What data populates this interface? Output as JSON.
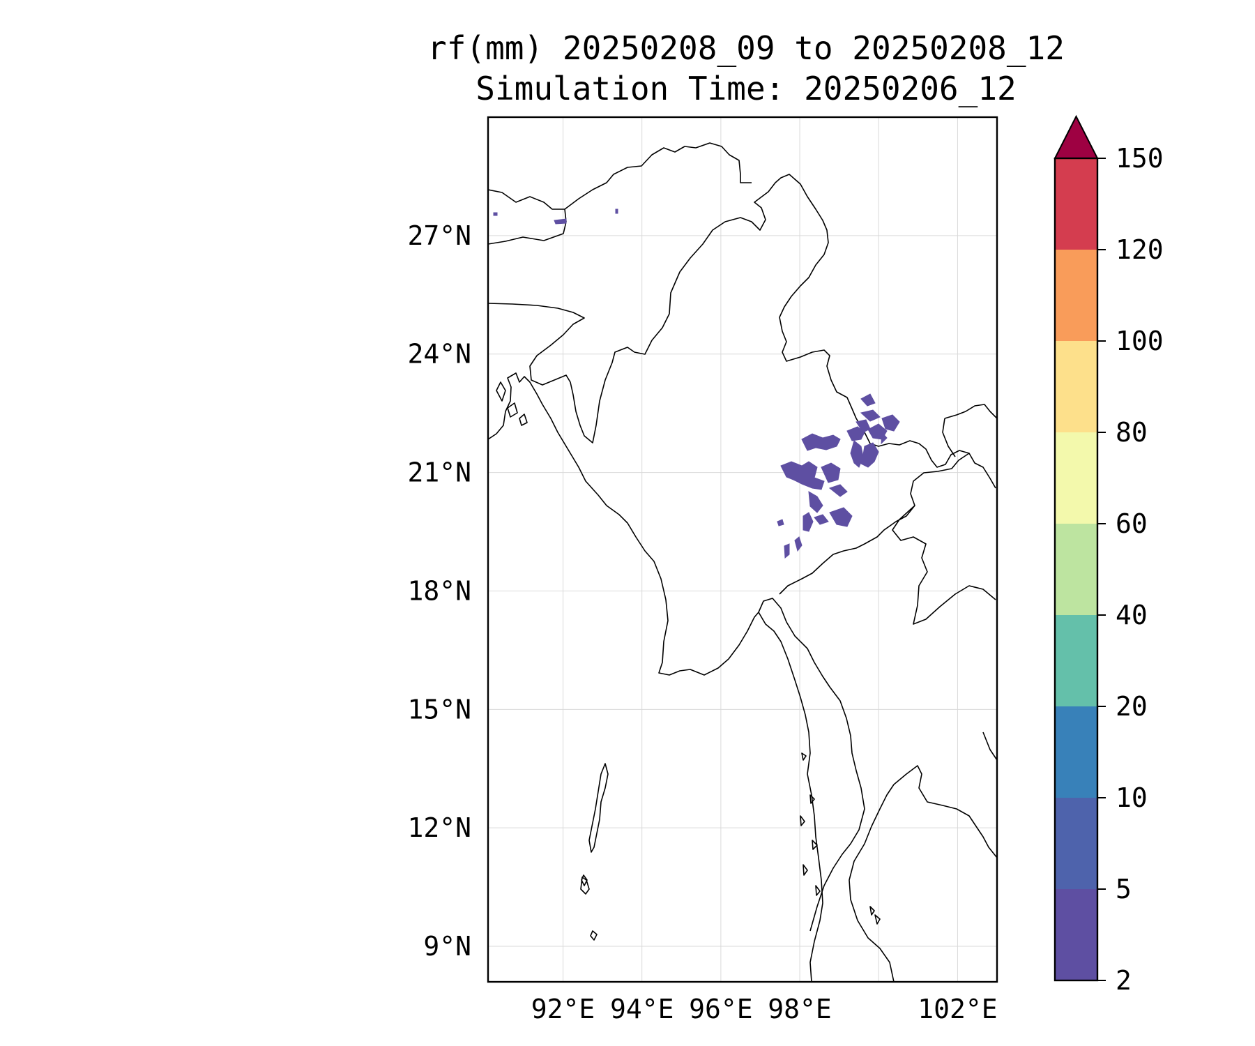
{
  "title": {
    "line1": "rf(mm) 20250208_09 to 20250208_12",
    "line2": "Simulation Time: 20250206_12"
  },
  "map": {
    "lon_range": [
      90.1,
      103.0
    ],
    "lat_range": [
      8.1,
      30.0
    ],
    "lon_ticks": [
      {
        "value": 92,
        "label": "92°E"
      },
      {
        "value": 94,
        "label": "94°E"
      },
      {
        "value": 96,
        "label": "96°E"
      },
      {
        "value": 98,
        "label": "98°E"
      },
      {
        "value": 102,
        "label": "102°E"
      }
    ],
    "lat_ticks": [
      {
        "value": 27,
        "label": "27°N"
      },
      {
        "value": 24,
        "label": "24°N"
      },
      {
        "value": 21,
        "label": "21°N"
      },
      {
        "value": 18,
        "label": "18°N"
      },
      {
        "value": 15,
        "label": "15°N"
      },
      {
        "value": 12,
        "label": "12°N"
      },
      {
        "value": 9,
        "label": "9°N"
      }
    ],
    "grid_lons": [
      92,
      94,
      96,
      98,
      100,
      102
    ],
    "grid_lats": [
      9,
      12,
      15,
      18,
      21,
      24,
      27
    ]
  },
  "colorbar": {
    "levels": [
      2,
      5,
      10,
      20,
      40,
      60,
      80,
      100,
      120,
      150
    ],
    "tick_labels": [
      "2",
      "5",
      "10",
      "20",
      "40",
      "60",
      "80",
      "100",
      "120",
      "150"
    ],
    "colors": [
      "#5e4fa2",
      "#4e63ac",
      "#3881b9",
      "#64c0aa",
      "#bde4a0",
      "#f3f9ac",
      "#fde08b",
      "#f99c5a",
      "#d43d4f"
    ],
    "extend_color": "#9e0142",
    "extend": "max"
  },
  "rain_areas": [
    {
      "level": "2-5",
      "color": "#5e4fa2"
    }
  ]
}
